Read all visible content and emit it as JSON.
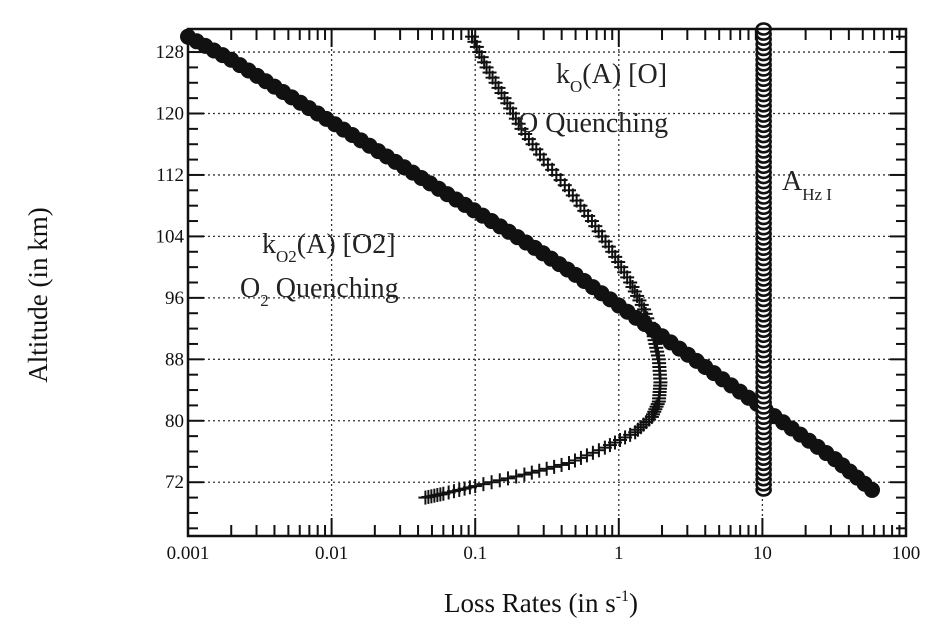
{
  "chart_data": {
    "type": "scatter",
    "title": "",
    "xlabel": "Loss Rates (in s",
    "xlabel_superscript": "-1",
    "xlabel_suffix": ")",
    "ylabel": "Altitude (in km)",
    "xscale": "log",
    "xlim": [
      0.001,
      100
    ],
    "ylim": [
      65,
      131
    ],
    "x_ticks": [
      0.001,
      0.01,
      0.1,
      1,
      10,
      100
    ],
    "x_tick_labels": [
      "0.001",
      "0.01",
      "0.1",
      "1",
      "10",
      "100"
    ],
    "y_ticks": [
      72,
      80,
      88,
      96,
      104,
      112,
      120,
      128
    ],
    "y_tick_labels": [
      "72",
      "80",
      "88",
      "96",
      "104",
      "112",
      "120",
      "128"
    ],
    "grid": true,
    "legend": "none",
    "series": [
      {
        "marker": "filled-circle",
        "color": "#111111",
        "x": [
          0.001,
          0.002,
          0.004,
          0.008,
          0.016,
          0.032,
          0.064,
          0.13,
          0.26,
          0.5,
          1.0,
          2.0,
          4.0,
          8.0,
          16.0,
          32.0,
          58.0
        ],
        "y": [
          130,
          127,
          123.5,
          120,
          116.5,
          113,
          109.5,
          106,
          102.5,
          99,
          95,
          91,
          87,
          83,
          79,
          75,
          71
        ]
      },
      {
        "marker": "plus",
        "color": "#111111",
        "x": [
          0.095,
          0.12,
          0.16,
          0.21,
          0.3,
          0.45,
          0.65,
          0.9,
          1.2,
          1.5,
          1.75,
          1.9,
          1.95,
          1.9,
          1.7,
          1.3,
          0.8,
          0.45,
          0.22,
          0.1,
          0.06,
          0.045
        ],
        "y": [
          130,
          126,
          122,
          118,
          114,
          110,
          106,
          102,
          98,
          94.5,
          91,
          88,
          85,
          82.5,
          80.5,
          78.5,
          76.5,
          74.5,
          73,
          71.5,
          70.5,
          70
        ]
      },
      {
        "marker": "open-circle",
        "color": "#111111",
        "x": [
          10.2,
          10.2,
          10.2,
          10.2,
          10.2,
          10.2,
          10.2,
          10.2,
          10.2,
          10.2,
          10.2,
          10.2,
          10.2,
          10.2,
          10.2,
          10.2
        ],
        "y": [
          71,
          75,
          79,
          83,
          87,
          91,
          95,
          99,
          103,
          107,
          111,
          115,
          119,
          123,
          127,
          131
        ]
      }
    ],
    "annotations": {
      "o2": {
        "k": "k",
        "k_sub": "O2",
        "rest": "(A) [O2]",
        "line2": "O",
        "line2_sub": "2",
        "line2_rest": " Quenching"
      },
      "o": {
        "k": "k",
        "k_sub": "O",
        "rest": "(A) [O]",
        "line2": "O Quenching"
      },
      "a": {
        "a": "A",
        "a_sub": "Hz I"
      }
    }
  }
}
